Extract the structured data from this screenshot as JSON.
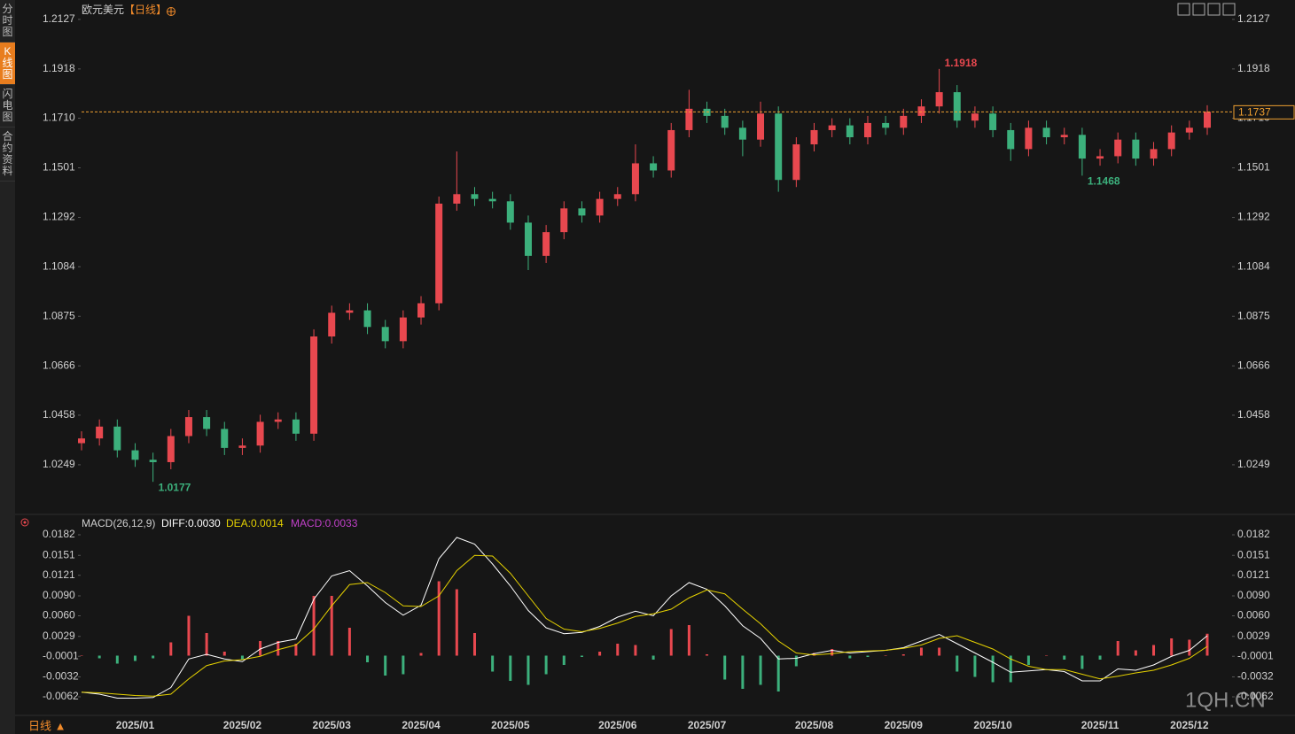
{
  "sidebar": {
    "tabs": [
      "分时图",
      "K线图",
      "闪电图",
      "合约资料"
    ]
  },
  "footer": {
    "period": "日线 ▲"
  },
  "watermark": "1QH.CN",
  "chart_data": {
    "type": "candlestick",
    "title": "欧元美元",
    "period": "【日线】",
    "up_color": "#e8484f",
    "down_color": "#3cb07c",
    "last_price_color": "#f0a030",
    "categories": [
      null,
      null,
      null,
      "2025/01",
      null,
      null,
      null,
      null,
      null,
      "2025/02",
      null,
      null,
      null,
      null,
      "2025/03",
      null,
      null,
      null,
      null,
      "2025/04",
      null,
      null,
      null,
      null,
      "2025/05",
      null,
      null,
      null,
      null,
      null,
      "2025/06",
      null,
      null,
      null,
      null,
      "2025/07",
      null,
      null,
      null,
      null,
      null,
      "2025/08",
      null,
      null,
      null,
      null,
      "2025/09",
      null,
      null,
      null,
      null,
      "2025/10",
      null,
      null,
      null,
      null,
      null,
      "2025/11",
      null,
      null,
      null,
      null,
      "2025/12",
      null
    ],
    "open": [
      1.034,
      1.036,
      1.041,
      1.031,
      1.027,
      1.026,
      1.037,
      1.045,
      1.04,
      1.032,
      1.033,
      1.043,
      1.044,
      1.038,
      1.079,
      1.089,
      1.09,
      1.083,
      1.077,
      1.087,
      1.093,
      1.135,
      1.139,
      1.137,
      1.136,
      1.127,
      1.113,
      1.123,
      1.133,
      1.13,
      1.137,
      1.139,
      1.152,
      1.149,
      1.166,
      1.175,
      1.172,
      1.167,
      1.162,
      1.173,
      1.145,
      1.16,
      1.166,
      1.168,
      1.163,
      1.169,
      1.167,
      1.172,
      1.176,
      1.182,
      1.17,
      1.173,
      1.166,
      1.158,
      1.167,
      1.163,
      1.164,
      1.154,
      1.155,
      1.162,
      1.154,
      1.158,
      1.165,
      1.167
    ],
    "high": [
      1.039,
      1.044,
      1.044,
      1.034,
      1.03,
      1.04,
      1.048,
      1.048,
      1.043,
      1.036,
      1.046,
      1.047,
      1.047,
      1.082,
      1.092,
      1.093,
      1.093,
      1.086,
      1.09,
      1.096,
      1.138,
      1.157,
      1.142,
      1.14,
      1.139,
      1.13,
      1.126,
      1.136,
      1.136,
      1.14,
      1.142,
      1.16,
      1.155,
      1.169,
      1.183,
      1.178,
      1.175,
      1.17,
      1.178,
      1.176,
      1.163,
      1.169,
      1.171,
      1.171,
      1.172,
      1.172,
      1.175,
      1.179,
      1.1918,
      1.185,
      1.176,
      1.176,
      1.169,
      1.17,
      1.17,
      1.167,
      1.167,
      1.158,
      1.165,
      1.165,
      1.161,
      1.168,
      1.17,
      1.1765
    ],
    "low": [
      1.031,
      1.033,
      1.028,
      1.024,
      1.0177,
      1.023,
      1.034,
      1.037,
      1.029,
      1.029,
      1.03,
      1.04,
      1.035,
      1.035,
      1.076,
      1.086,
      1.08,
      1.074,
      1.074,
      1.084,
      1.09,
      1.132,
      1.134,
      1.133,
      1.124,
      1.107,
      1.11,
      1.12,
      1.127,
      1.127,
      1.134,
      1.136,
      1.146,
      1.146,
      1.163,
      1.169,
      1.164,
      1.155,
      1.159,
      1.14,
      1.142,
      1.157,
      1.163,
      1.16,
      1.16,
      1.164,
      1.164,
      1.169,
      1.173,
      1.167,
      1.167,
      1.163,
      1.153,
      1.155,
      1.16,
      1.16,
      1.1468,
      1.151,
      1.152,
      1.151,
      1.151,
      1.155,
      1.162,
      1.164
    ],
    "close": [
      1.036,
      1.041,
      1.031,
      1.027,
      1.026,
      1.037,
      1.045,
      1.04,
      1.032,
      1.033,
      1.043,
      1.044,
      1.038,
      1.079,
      1.089,
      1.09,
      1.083,
      1.077,
      1.087,
      1.093,
      1.135,
      1.139,
      1.137,
      1.136,
      1.127,
      1.113,
      1.123,
      1.133,
      1.13,
      1.137,
      1.139,
      1.152,
      1.149,
      1.166,
      1.175,
      1.172,
      1.167,
      1.162,
      1.173,
      1.145,
      1.16,
      1.166,
      1.168,
      1.163,
      1.169,
      1.167,
      1.172,
      1.176,
      1.182,
      1.17,
      1.173,
      1.166,
      1.158,
      1.167,
      1.163,
      1.164,
      1.154,
      1.155,
      1.162,
      1.154,
      1.158,
      1.165,
      1.167,
      1.1737
    ],
    "ylim": [
      1.0062,
      1.219
    ],
    "yticks": [
      1.2127,
      1.1918,
      {
        "value": 1.171,
        "label": "1.1710"
      },
      1.1501,
      1.1292,
      1.1084,
      1.0875,
      1.0666,
      1.0458,
      1.0249
    ],
    "macd": {
      "type": "macd",
      "title": "MACD(26,12,9)",
      "ylim": [
        -0.0086,
        0.019
      ],
      "yticks": [
        0.0182,
        0.0151,
        0.0121,
        {
          "value": 0.009,
          "label": "0.0090"
        },
        {
          "value": 0.006,
          "label": "0.0060"
        },
        0.0029,
        -0.0001,
        -0.0032,
        -0.0062
      ],
      "series": [
        {
          "name": "DIFF:0.0030",
          "color": "#ffffff",
          "values": [
            -0.0055,
            -0.0058,
            -0.0064,
            -0.0064,
            -0.0063,
            -0.0048,
            -0.0005,
            0.0002,
            -0.0005,
            -0.0009,
            0.001,
            0.002,
            0.0025,
            0.0085,
            0.012,
            0.0128,
            0.0105,
            0.008,
            0.0061,
            0.0076,
            0.0146,
            0.0178,
            0.0168,
            0.0138,
            0.0105,
            0.0068,
            0.0042,
            0.0033,
            0.0035,
            0.0044,
            0.0058,
            0.0067,
            0.006,
            0.009,
            0.011,
            0.01,
            0.0075,
            0.0045,
            0.0026,
            -0.0005,
            -0.0004,
            0.0003,
            0.0008,
            0.0004,
            0.0006,
            0.0008,
            0.0012,
            0.0022,
            0.0032,
            0.0018,
            0.0004,
            -0.001,
            -0.0025,
            -0.0023,
            -0.0021,
            -0.0024,
            -0.0038,
            -0.0038,
            -0.002,
            -0.0022,
            -0.0014,
            -0.0001,
            0.0008,
            0.003
          ]
        },
        {
          "name": "DEA:0.0014",
          "color": "#e6d200",
          "values": [
            -0.0055,
            -0.0056,
            -0.0058,
            -0.006,
            -0.0061,
            -0.0058,
            -0.0035,
            -0.0015,
            -0.0008,
            -0.0006,
            -0.0001,
            0.0009,
            0.0016,
            0.004,
            0.0075,
            0.0107,
            0.011,
            0.0095,
            0.0075,
            0.0074,
            0.009,
            0.0128,
            0.0151,
            0.015,
            0.0124,
            0.009,
            0.0056,
            0.004,
            0.0036,
            0.0041,
            0.0049,
            0.0059,
            0.0063,
            0.007,
            0.0087,
            0.0099,
            0.0093,
            0.007,
            0.0048,
            0.0022,
            0.0004,
            0.0001,
            0.0003,
            0.0006,
            0.0007,
            0.0008,
            0.0011,
            0.0016,
            0.0026,
            0.003,
            0.002,
            0.001,
            -0.0005,
            -0.0016,
            -0.0021,
            -0.0021,
            -0.0028,
            -0.0035,
            -0.0031,
            -0.0026,
            -0.0022,
            -0.0014,
            -0.0004,
            0.0014
          ]
        },
        {
          "name": "MACD:0.0033",
          "color": "#c040c8",
          "values": [
            0.0,
            -0.0004,
            -0.0012,
            -0.0008,
            -0.0004,
            0.002,
            0.006,
            0.0034,
            0.0006,
            -0.0006,
            0.0022,
            0.0022,
            0.0018,
            0.009,
            0.009,
            0.0042,
            -0.001,
            -0.003,
            -0.0028,
            0.0004,
            0.0112,
            0.01,
            0.0034,
            -0.0024,
            -0.0038,
            -0.0044,
            -0.0028,
            -0.0014,
            -0.0002,
            0.0006,
            0.0018,
            0.0016,
            -0.0006,
            0.004,
            0.0046,
            0.0002,
            -0.0036,
            -0.005,
            -0.0044,
            -0.0054,
            -0.0016,
            0.0004,
            0.001,
            -0.0004,
            -0.0002,
            0.0,
            0.0002,
            0.0012,
            0.0012,
            -0.0024,
            -0.0032,
            -0.004,
            -0.004,
            -0.0014,
            0.0,
            -0.0006,
            -0.002,
            -0.0006,
            0.0022,
            0.0008,
            0.0016,
            0.0026,
            0.0024,
            0.0033
          ]
        }
      ]
    }
  }
}
